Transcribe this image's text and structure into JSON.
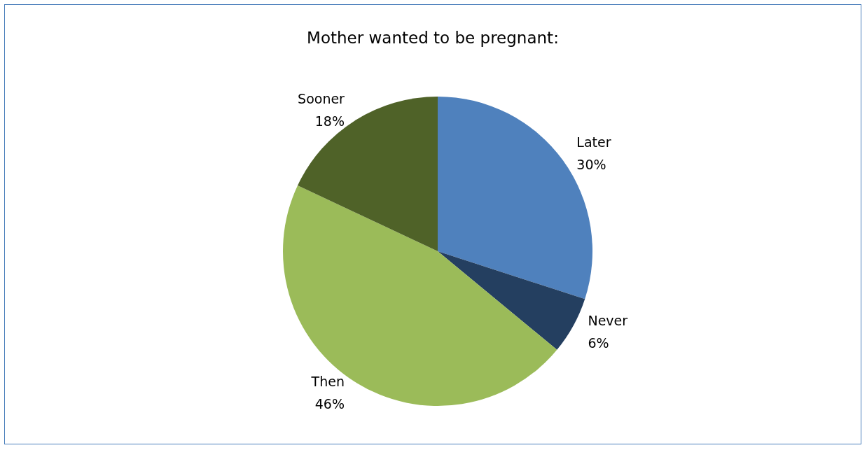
{
  "chart_data": {
    "type": "pie",
    "title": "Mother wanted to be pregnant:",
    "categories": [
      "Later",
      "Never",
      "Then",
      "Sooner"
    ],
    "values": [
      30,
      6,
      46,
      18
    ],
    "colors": [
      "#4f81bd",
      "#243f60",
      "#9bbb59",
      "#4f6228"
    ],
    "value_labels": [
      "30%",
      "6%",
      "46%",
      "18%"
    ],
    "legend": false
  }
}
